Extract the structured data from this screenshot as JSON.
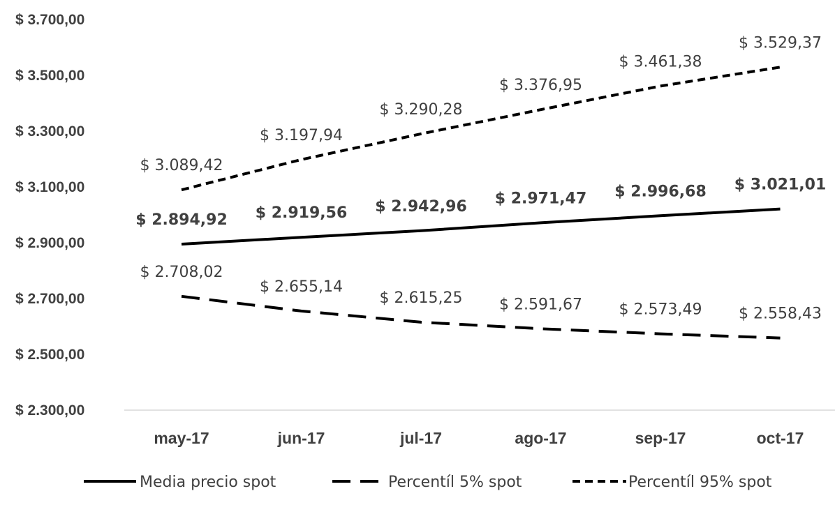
{
  "chart_data": {
    "type": "line",
    "title": "",
    "xlabel": "",
    "ylabel": "",
    "categories": [
      "may-17",
      "jun-17",
      "jul-17",
      "ago-17",
      "sep-17",
      "oct-17"
    ],
    "ylim": [
      2300,
      3700
    ],
    "yticks": [
      2300,
      2500,
      2700,
      2900,
      3100,
      3300,
      3500,
      3700
    ],
    "ytick_labels": [
      "$ 2.300,00",
      "$ 2.500,00",
      "$ 2.700,00",
      "$ 2.900,00",
      "$ 3.100,00",
      "$ 3.300,00",
      "$ 3.500,00",
      "$ 3.700,00"
    ],
    "grid": false,
    "legend_position": "bottom",
    "series": [
      {
        "name": "Media precio spot",
        "line_style": "solid",
        "bold_labels": true,
        "values": [
          2894.92,
          2919.56,
          2942.96,
          2971.47,
          2996.68,
          3021.01
        ],
        "labels": [
          "$ 2.894,92",
          "$ 2.919,56",
          "$ 2.942,96",
          "$ 2.971,47",
          "$ 2.996,68",
          "$ 3.021,01"
        ]
      },
      {
        "name": "Percentíl 5% spot",
        "line_style": "long-dash",
        "bold_labels": false,
        "values": [
          2708.02,
          2655.14,
          2615.25,
          2591.67,
          2573.49,
          2558.43
        ],
        "labels": [
          "$ 2.708,02",
          "$ 2.655,14",
          "$ 2.615,25",
          "$ 2.591,67",
          "$ 2.573,49",
          "$ 2.558,43"
        ]
      },
      {
        "name": "Percentíl 95% spot",
        "line_style": "short-dash",
        "bold_labels": false,
        "values": [
          3089.42,
          3197.94,
          3290.28,
          3376.95,
          3461.38,
          3529.37
        ],
        "labels": [
          "$ 3.089,42",
          "$ 3.197,94",
          "$ 3.290,28",
          "$ 3.376,95",
          "$ 3.461,38",
          "$ 3.529,37"
        ]
      }
    ],
    "colors": {
      "line": "#000000",
      "text": "#404040",
      "axis": "#d9d9d9"
    }
  }
}
